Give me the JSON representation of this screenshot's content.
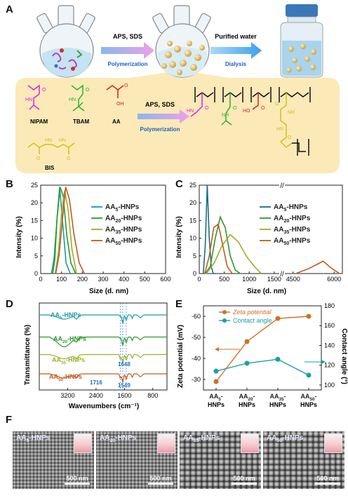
{
  "panels": {
    "a": "A",
    "b": "B",
    "c": "C",
    "d": "D",
    "e": "E",
    "f": "F"
  },
  "schematic": {
    "step1_top": "APS, SDS",
    "step1_bottom": "Polymerization",
    "step2_top": "Purified water",
    "step2_bottom": "Dialysis",
    "reaction_top": "APS, SDS",
    "reaction_bottom": "Polymerization",
    "monomers": [
      "NIPAM",
      "TBAM",
      "AA",
      "BIS"
    ],
    "chem_labels": [
      "HN",
      "O",
      "HN",
      "O",
      "O",
      "OH",
      "HN",
      "HN",
      "O",
      "O",
      "HN",
      "O",
      "NH",
      "O",
      "HO",
      "O",
      "NH",
      "O",
      "HN",
      "O"
    ],
    "colors": {
      "nipam": "#e020e0",
      "tbam": "#30b030",
      "aa": "#d02020",
      "bis": "#d8d820",
      "box": "#fbe9b8"
    }
  },
  "chart_data": [
    {
      "panel": "B",
      "type": "line",
      "ylabel": "Intensity (%)",
      "xlabel": "Size (d. nm)",
      "xlim": [
        0,
        600
      ],
      "ylim": [
        0,
        25
      ],
      "xticks": [
        "0",
        "100",
        "200",
        "300",
        "400",
        "500",
        "600"
      ],
      "yticks": [
        "0",
        "5",
        "10",
        "15",
        "20",
        "25"
      ],
      "legend_position": "right",
      "series": [
        {
          "name": "AA5-HNPs",
          "sub": "5",
          "color": "#1a9ba8",
          "x": [
            58,
            68,
            79,
            91,
            106,
            122,
            142
          ],
          "y": [
            0,
            4,
            16,
            24.5,
            14,
            3,
            0
          ]
        },
        {
          "name": "AA20-HNPs",
          "sub": "20",
          "color": "#2a9a2a",
          "x": [
            52,
            64,
            78,
            93,
            108,
            125,
            145,
            168
          ],
          "y": [
            0,
            4,
            15,
            24.5,
            22,
            11,
            3,
            0
          ]
        },
        {
          "name": "AA35-HNPs",
          "sub": "35",
          "color": "#9ab028",
          "x": [
            70,
            85,
            100,
            115,
            132,
            150,
            172
          ],
          "y": [
            0,
            6,
            17,
            23.5,
            18,
            7,
            0
          ]
        },
        {
          "name": "AA50-HNPs",
          "sub": "50",
          "color": "#c25a20",
          "x": [
            72,
            88,
            104,
            120,
            138,
            160,
            185,
            210
          ],
          "y": [
            0,
            5,
            15,
            24.5,
            21,
            11,
            3,
            0
          ]
        }
      ]
    },
    {
      "panel": "C",
      "type": "line",
      "ylabel": "Intensity (%)",
      "xlabel": "Size (d. nm)",
      "ylim": [
        0,
        25
      ],
      "xticks_left": [
        "0",
        "500",
        "1000",
        "1500"
      ],
      "xticks_right": [
        "4500",
        "6000"
      ],
      "yticks": [
        "0",
        "5",
        "10",
        "15",
        "20",
        "25"
      ],
      "legend_position": "right",
      "series": [
        {
          "name": "AA5-HNPs",
          "sub": "5",
          "color": "#1a6f86",
          "x": [
            80,
            120,
            160,
            200,
            240,
            280,
            320
          ],
          "y": [
            0,
            8,
            25,
            10,
            2,
            0,
            0
          ]
        },
        {
          "name": "AA20-HNPs",
          "sub": "20",
          "color": "#2a9a2a",
          "x": [
            120,
            220,
            320,
            420,
            520,
            620,
            720,
            820
          ],
          "y": [
            0,
            2,
            10,
            16,
            13,
            5,
            1,
            0
          ]
        },
        {
          "name": "AA35-HNPs",
          "sub": "35",
          "color": "#9ab028",
          "x": [
            140,
            300,
            460,
            620,
            780,
            940,
            1100,
            1240
          ],
          "y": [
            0,
            3,
            8,
            11,
            9,
            5,
            2,
            0
          ]
        },
        {
          "name": "AA50-HNPs",
          "sub": "50",
          "color": "#c25a20",
          "x": [
            110,
            200,
            290,
            380,
            470,
            560,
            660
          ],
          "y": [
            0,
            5,
            13,
            14,
            8,
            2,
            0
          ],
          "x2": [
            4600,
            5100,
            5600,
            5900,
            6200
          ],
          "y2": [
            0,
            1.5,
            3.5,
            1.5,
            0
          ]
        }
      ]
    },
    {
      "panel": "D",
      "type": "line",
      "ylabel": "Transmittance (%)",
      "xlabel": "Wavenumbers (cm⁻¹)",
      "xlim": [
        4000,
        400
      ],
      "xticks": [
        "3200",
        "2400",
        "1600",
        "800"
      ],
      "annotations": [
        "1648",
        "1716",
        "1549"
      ],
      "series": [
        {
          "name": "AA5-HNPs",
          "sub": "5",
          "color": "#1a9ba8"
        },
        {
          "name": "AA20-HNPs",
          "sub": "20",
          "color": "#2a9a2a"
        },
        {
          "name": "AA35-HNPs",
          "sub": "35",
          "color": "#9ab028"
        },
        {
          "name": "AA50-HNPs",
          "sub": "50",
          "color": "#c25a20"
        }
      ]
    },
    {
      "panel": "E",
      "type": "line",
      "ylabel": "Zeta potential (mV)",
      "y2label": "Contact angle (°)",
      "categories": [
        "AA5-HNPs",
        "AA20-HNPs",
        "AA35-HNPs",
        "AA50-HNPs"
      ],
      "cat_subs": [
        "5",
        "20",
        "35",
        "50"
      ],
      "ylim": [
        -25,
        -65
      ],
      "yticks": [
        "-30",
        "-40",
        "-50",
        "-60"
      ],
      "y2lim": [
        95,
        180
      ],
      "y2ticks": [
        "100",
        "120",
        "140",
        "160",
        "180"
      ],
      "series": [
        {
          "name": "Zeta potential",
          "color": "#d0702a",
          "axis": "left",
          "values": [
            -29,
            -48,
            -59,
            -60
          ]
        },
        {
          "name": "Contact angle",
          "color": "#1aa0a0",
          "axis": "right",
          "values": [
            114,
            122,
            126,
            110
          ]
        }
      ]
    }
  ],
  "sem": [
    {
      "label": "AA",
      "sub": "5",
      "rest": "-HNPs",
      "scale": "500 nm",
      "texture": "fine"
    },
    {
      "label": "AA",
      "sub": "20",
      "rest": "-HNPs",
      "scale": "500 nm",
      "texture": "fine"
    },
    {
      "label": "AA",
      "sub": "35",
      "rest": "-HNPs",
      "scale": "500 nm",
      "texture": "coarse"
    },
    {
      "label": "AA",
      "sub": "50",
      "rest": "-HNPs",
      "scale": "500 nm",
      "texture": "coarse"
    }
  ]
}
